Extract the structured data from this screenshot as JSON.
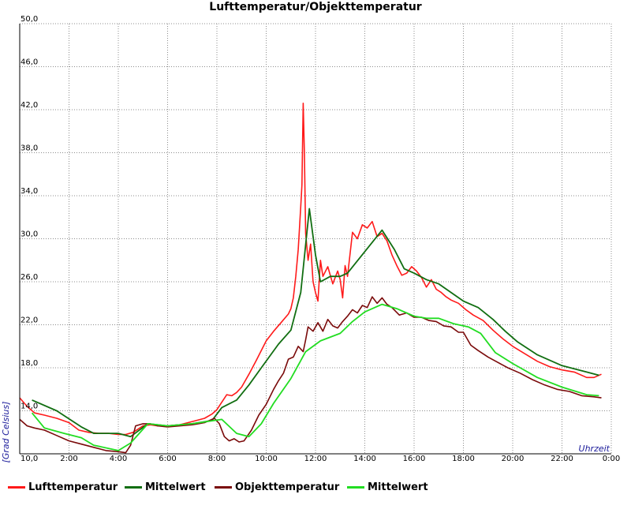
{
  "chart_data": {
    "type": "line",
    "title": "Lufttemperatur/Objekttemperatur",
    "ylabel": "[Grad Celsius]",
    "xlabel": "Uhrzeit",
    "ylim": [
      10,
      50
    ],
    "xlim": [
      0,
      24
    ],
    "yticks": [
      "50,0",
      "46,0",
      "42,0",
      "38,0",
      "34,0",
      "30,0",
      "26,0",
      "22,0",
      "18,0",
      "14,0",
      "10,0"
    ],
    "ytick_values": [
      50,
      46,
      42,
      38,
      34,
      30,
      26,
      22,
      18,
      14,
      10
    ],
    "xticks": [
      "0:00",
      "2:00",
      "4:00",
      "6:00",
      "8:00",
      "10:00",
      "12:00",
      "14:00",
      "16:00",
      "18:00",
      "20:00",
      "22:00",
      "0:00"
    ],
    "xtick_values": [
      0,
      2,
      4,
      6,
      8,
      10,
      12,
      14,
      16,
      18,
      20,
      22,
      24
    ],
    "grid": true,
    "legend_position": "bottom",
    "series": [
      {
        "name": "Lufttemperatur",
        "color": "#ff1a1a",
        "x": [
          0.0,
          0.3,
          0.6,
          1.0,
          1.5,
          2.0,
          2.4,
          2.8,
          3.2,
          3.6,
          4.0,
          4.3,
          4.6,
          5.0,
          5.3,
          5.6,
          6.0,
          6.5,
          7.0,
          7.5,
          7.8,
          8.0,
          8.2,
          8.4,
          8.6,
          8.8,
          9.0,
          9.3,
          9.6,
          10.0,
          10.3,
          10.6,
          10.9,
          11.0,
          11.1,
          11.2,
          11.3,
          11.35,
          11.4,
          11.45,
          11.5,
          11.55,
          11.6,
          11.7,
          11.8,
          11.9,
          12.0,
          12.1,
          12.2,
          12.3,
          12.5,
          12.7,
          12.9,
          13.0,
          13.1,
          13.2,
          13.3,
          13.5,
          13.7,
          13.9,
          14.1,
          14.3,
          14.5,
          14.7,
          14.9,
          15.1,
          15.3,
          15.5,
          15.7,
          15.9,
          16.1,
          16.3,
          16.5,
          16.7,
          16.9,
          17.1,
          17.3,
          17.5,
          17.8,
          18.1,
          18.4,
          18.8,
          19.2,
          19.6,
          20.0,
          20.5,
          21.0,
          21.5,
          22.0,
          22.5,
          23.0,
          23.3,
          23.6
        ],
        "y": [
          15.2,
          14.4,
          13.8,
          13.6,
          13.3,
          12.9,
          12.2,
          12.0,
          11.9,
          11.9,
          11.8,
          11.8,
          12.0,
          12.6,
          12.7,
          12.6,
          12.6,
          12.7,
          13.0,
          13.3,
          13.7,
          14.1,
          14.8,
          15.5,
          15.4,
          15.7,
          16.2,
          17.4,
          18.7,
          20.5,
          21.4,
          22.2,
          23.0,
          23.5,
          24.5,
          26.5,
          29.0,
          31.0,
          33.0,
          35.0,
          42.6,
          38.0,
          30.5,
          28.0,
          29.5,
          26.0,
          25.0,
          24.2,
          28.0,
          26.5,
          27.4,
          25.8,
          27.0,
          26.2,
          24.5,
          27.5,
          26.5,
          30.6,
          30.0,
          31.3,
          31.0,
          31.6,
          30.2,
          30.5,
          29.8,
          28.5,
          27.5,
          26.6,
          26.8,
          27.4,
          27.0,
          26.4,
          25.5,
          26.2,
          25.3,
          25.0,
          24.6,
          24.3,
          24.0,
          23.4,
          22.9,
          22.4,
          21.5,
          20.7,
          20.0,
          19.3,
          18.6,
          18.1,
          17.8,
          17.6,
          17.1,
          17.1,
          17.4
        ]
      },
      {
        "name": "Mittelwert",
        "color": "#116e11",
        "x": [
          0.5,
          1.5,
          2.5,
          3.0,
          4.0,
          4.5,
          5.2,
          6.0,
          7.0,
          7.8,
          8.2,
          8.8,
          9.3,
          9.8,
          10.5,
          11.0,
          11.4,
          11.75,
          12.0,
          12.2,
          12.6,
          13.0,
          13.3,
          14.0,
          14.7,
          15.2,
          15.6,
          16.0,
          16.5,
          17.0,
          17.5,
          18.0,
          18.6,
          19.2,
          19.7,
          20.2,
          21.0,
          22.0,
          23.0,
          23.5
        ],
        "y": [
          15.0,
          14.0,
          12.5,
          11.9,
          11.9,
          11.6,
          12.8,
          12.6,
          12.8,
          13.1,
          14.3,
          15.0,
          16.4,
          18.0,
          20.2,
          21.5,
          25.0,
          32.8,
          28.5,
          26.0,
          26.5,
          26.5,
          26.8,
          28.8,
          30.8,
          29.0,
          27.2,
          26.8,
          26.2,
          25.8,
          25.0,
          24.2,
          23.6,
          22.5,
          21.4,
          20.4,
          19.2,
          18.2,
          17.6,
          17.3
        ]
      },
      {
        "name": "Objekttemperatur",
        "color": "#7a0a0a",
        "x": [
          0.0,
          0.3,
          0.6,
          1.0,
          1.5,
          2.0,
          2.5,
          3.0,
          3.5,
          4.0,
          4.3,
          4.5,
          4.7,
          5.0,
          5.3,
          5.6,
          6.0,
          6.5,
          7.0,
          7.5,
          7.9,
          8.1,
          8.3,
          8.5,
          8.7,
          8.9,
          9.1,
          9.4,
          9.7,
          10.0,
          10.3,
          10.5,
          10.7,
          10.9,
          11.1,
          11.3,
          11.5,
          11.6,
          11.7,
          11.9,
          12.1,
          12.3,
          12.5,
          12.7,
          12.9,
          13.1,
          13.3,
          13.5,
          13.7,
          13.9,
          14.1,
          14.3,
          14.5,
          14.7,
          14.9,
          15.1,
          15.4,
          15.7,
          16.0,
          16.3,
          16.6,
          16.9,
          17.2,
          17.5,
          17.8,
          18.0,
          18.3,
          18.6,
          19.0,
          19.4,
          19.8,
          20.3,
          20.8,
          21.3,
          21.8,
          22.3,
          22.8,
          23.3,
          23.6
        ],
        "y": [
          13.2,
          12.6,
          12.4,
          12.2,
          11.7,
          11.2,
          10.9,
          10.6,
          10.3,
          10.2,
          10.1,
          10.8,
          12.6,
          12.8,
          12.8,
          12.6,
          12.5,
          12.6,
          12.7,
          12.9,
          13.3,
          12.8,
          11.6,
          11.2,
          11.4,
          11.1,
          11.2,
          12.2,
          13.6,
          14.6,
          16.0,
          16.8,
          17.5,
          18.8,
          19.0,
          20.0,
          19.5,
          20.6,
          21.8,
          21.4,
          22.2,
          21.4,
          22.5,
          21.9,
          21.7,
          22.3,
          22.8,
          23.4,
          23.1,
          23.8,
          23.6,
          24.6,
          24.0,
          24.5,
          23.9,
          23.6,
          22.9,
          23.1,
          22.7,
          22.7,
          22.4,
          22.3,
          21.9,
          21.8,
          21.3,
          21.3,
          20.1,
          19.6,
          19.0,
          18.5,
          18.0,
          17.5,
          16.9,
          16.4,
          16.0,
          15.8,
          15.4,
          15.3,
          15.2
        ]
      },
      {
        "name": "Mittelwert",
        "color": "#22dd22",
        "x": [
          0.5,
          1.0,
          1.8,
          2.5,
          3.0,
          4.0,
          4.5,
          5.2,
          6.0,
          7.0,
          8.2,
          8.8,
          9.3,
          9.8,
          10.3,
          11.0,
          11.6,
          12.2,
          13.0,
          13.5,
          14.0,
          14.7,
          15.3,
          16.0,
          16.5,
          17.0,
          17.6,
          18.2,
          18.7,
          19.3,
          20.0,
          21.0,
          22.0,
          23.0,
          23.5
        ],
        "y": [
          13.8,
          12.4,
          11.9,
          11.5,
          10.8,
          10.3,
          11.0,
          12.8,
          12.6,
          12.8,
          13.2,
          11.9,
          11.6,
          12.8,
          14.7,
          17.0,
          19.5,
          20.5,
          21.2,
          22.3,
          23.2,
          23.9,
          23.5,
          22.8,
          22.6,
          22.6,
          22.1,
          21.8,
          21.2,
          19.4,
          18.4,
          17.1,
          16.2,
          15.5,
          15.4
        ]
      }
    ]
  }
}
